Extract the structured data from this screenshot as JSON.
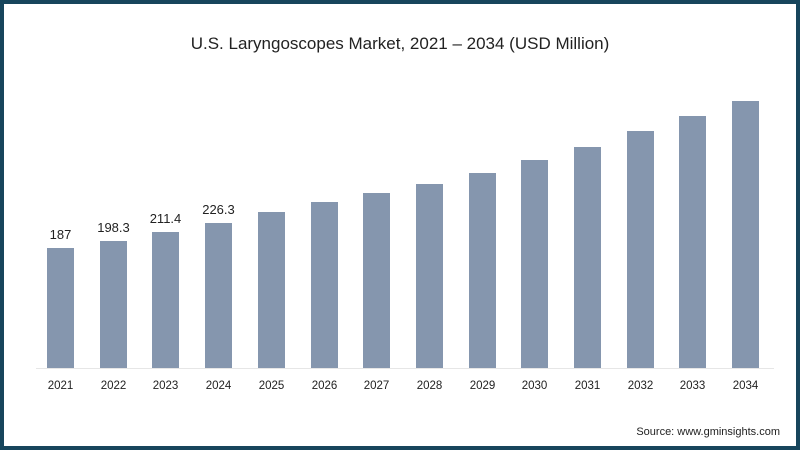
{
  "chart_data": {
    "type": "bar",
    "title": "U.S. Laryngoscopes Market, 2021 – 2034 (USD Million)",
    "xlabel": "",
    "ylabel": "",
    "categories": [
      "2021",
      "2022",
      "2023",
      "2024",
      "2025",
      "2026",
      "2027",
      "2028",
      "2029",
      "2030",
      "2031",
      "2032",
      "2033",
      "2034"
    ],
    "values": [
      187,
      198.3,
      211.4,
      226.3,
      243,
      259,
      273,
      287,
      304,
      324,
      344,
      369,
      393,
      416
    ],
    "value_labels": [
      "187",
      "198.3",
      "211.4",
      "226.3",
      "",
      "",
      "",
      "",
      "",
      "",
      "",
      "",
      "",
      ""
    ],
    "ylim": [
      0,
      430
    ],
    "grid": false,
    "legend": null,
    "bar_color": "#8596ae",
    "source": "Source: www.gminsights.com"
  },
  "colors": {
    "bar": "#8596ae",
    "frame": "#17455c",
    "background": "#ffffff"
  }
}
